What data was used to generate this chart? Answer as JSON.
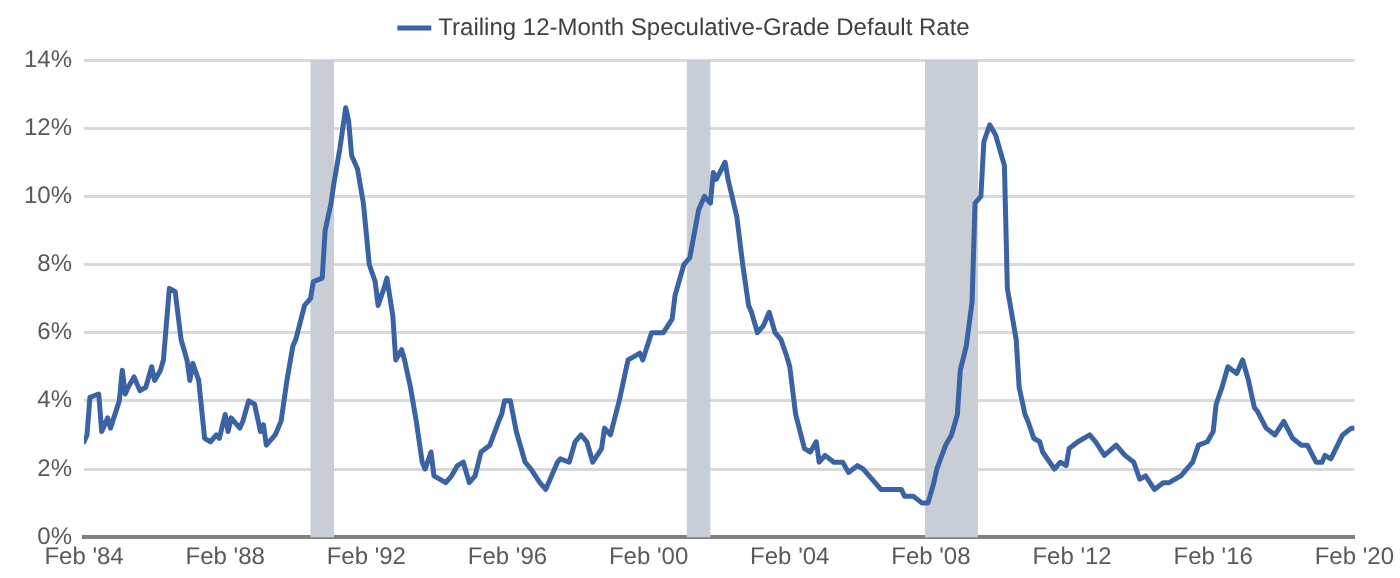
{
  "chart_data": {
    "type": "line",
    "legend": "top",
    "grid": "y",
    "marker": "none",
    "line_style": "solid",
    "xlim": [
      "1984-02",
      "2020-02"
    ],
    "xticks": [
      {
        "value": "1984-02",
        "label": "Feb '84"
      },
      {
        "value": "1988-02",
        "label": "Feb '88"
      },
      {
        "value": "1992-02",
        "label": "Feb '92"
      },
      {
        "value": "1996-02",
        "label": "Feb '96"
      },
      {
        "value": "2000-02",
        "label": "Feb '00"
      },
      {
        "value": "2004-02",
        "label": "Feb '04"
      },
      {
        "value": "2008-02",
        "label": "Feb '08"
      },
      {
        "value": "2012-02",
        "label": "Feb '12"
      },
      {
        "value": "2016-02",
        "label": "Feb '16"
      },
      {
        "value": "2020-02",
        "label": "Feb '20"
      }
    ],
    "ylim": [
      0,
      14
    ],
    "yticks": [
      {
        "value": 0,
        "label": "0%"
      },
      {
        "value": 2,
        "label": "2%"
      },
      {
        "value": 4,
        "label": "4%"
      },
      {
        "value": 6,
        "label": "6%"
      },
      {
        "value": 8,
        "label": "8%"
      },
      {
        "value": 10,
        "label": "10%"
      },
      {
        "value": 12,
        "label": "12%"
      },
      {
        "value": 14,
        "label": "14%"
      }
    ],
    "bands": [
      {
        "axis": "x",
        "from": "1990-07",
        "to": "1991-03",
        "color": "#c9ced6"
      },
      {
        "axis": "x",
        "from": "2001-03",
        "to": "2001-11",
        "color": "#c9ced6"
      },
      {
        "axis": "x",
        "from": "2007-12",
        "to": "2009-06",
        "color": "#c9ced6"
      }
    ],
    "x": [
      "1984-02",
      "1984-03",
      "1984-04",
      "1984-07",
      "1984-08",
      "1984-10",
      "1984-11",
      "1985-02",
      "1985-03",
      "1985-04",
      "1985-05",
      "1985-07",
      "1985-09",
      "1985-11",
      "1986-01",
      "1986-02",
      "1986-04",
      "1986-05",
      "1986-07",
      "1986-09",
      "1986-11",
      "1987-01",
      "1987-02",
      "1987-03",
      "1987-05",
      "1987-07",
      "1987-09",
      "1987-11",
      "1987-12",
      "1988-02",
      "1988-03",
      "1988-04",
      "1988-07",
      "1988-08",
      "1988-10",
      "1988-12",
      "1989-02",
      "1989-03",
      "1989-04",
      "1989-07",
      "1989-09",
      "1989-11",
      "1990-01",
      "1990-02",
      "1990-05",
      "1990-07",
      "1990-08",
      "1990-11",
      "1990-12",
      "1991-02",
      "1991-03",
      "1991-05",
      "1991-07",
      "1991-08",
      "1991-09",
      "1991-11",
      "1992-01",
      "1992-02",
      "1992-03",
      "1992-05",
      "1992-06",
      "1992-08",
      "1992-09",
      "1992-11",
      "1992-12",
      "1993-02",
      "1993-03",
      "1993-05",
      "1993-07",
      "1993-09",
      "1993-10",
      "1993-12",
      "1994-01",
      "1994-05",
      "1994-07",
      "1994-09",
      "1994-11",
      "1995-01",
      "1995-03",
      "1995-05",
      "1995-08",
      "1995-11",
      "1995-12",
      "1996-01",
      "1996-03",
      "1996-05",
      "1996-08",
      "1996-10",
      "1997-01",
      "1997-03",
      "1997-07",
      "1997-08",
      "1997-11",
      "1998-01",
      "1998-03",
      "1998-05",
      "1998-07",
      "1998-10",
      "1998-11",
      "1999-01",
      "1999-04",
      "1999-07",
      "1999-09",
      "1999-11",
      "1999-12",
      "2000-03",
      "2000-05",
      "2000-07",
      "2000-10",
      "2000-11",
      "2001-02",
      "2001-04",
      "2001-07",
      "2001-09",
      "2001-11",
      "2001-12",
      "2002-01",
      "2002-04",
      "2002-05",
      "2002-08",
      "2002-10",
      "2002-12",
      "2003-01",
      "2003-03",
      "2003-05",
      "2003-07",
      "2003-09",
      "2003-11",
      "2004-01",
      "2004-02",
      "2004-04",
      "2004-07",
      "2004-09",
      "2004-11",
      "2004-12",
      "2005-02",
      "2005-05",
      "2005-08",
      "2005-10",
      "2006-01",
      "2006-03",
      "2006-05",
      "2006-09",
      "2007-01",
      "2007-04",
      "2007-05",
      "2007-08",
      "2007-11",
      "2008-01",
      "2008-03",
      "2008-04",
      "2008-07",
      "2008-09",
      "2008-11",
      "2008-12",
      "2009-02",
      "2009-04",
      "2009-05",
      "2009-07",
      "2009-08",
      "2009-10",
      "2009-12",
      "2010-03",
      "2010-04",
      "2010-07",
      "2010-08",
      "2010-10",
      "2010-11",
      "2011-01",
      "2011-03",
      "2011-04",
      "2011-08",
      "2011-10",
      "2011-12",
      "2012-01",
      "2012-04",
      "2012-08",
      "2012-10",
      "2013-01",
      "2013-05",
      "2013-08",
      "2013-11",
      "2014-01",
      "2014-03",
      "2014-06",
      "2014-09",
      "2014-11",
      "2015-03",
      "2015-07",
      "2015-09",
      "2015-12",
      "2016-02",
      "2016-03",
      "2016-05",
      "2016-07",
      "2016-10",
      "2016-12",
      "2017-02",
      "2017-04",
      "2017-05",
      "2017-08",
      "2017-11",
      "2018-02",
      "2018-05",
      "2018-08",
      "2018-10",
      "2019-01",
      "2019-03",
      "2019-04",
      "2019-06",
      "2019-10",
      "2020-01",
      "2020-02"
    ],
    "series": [
      {
        "name": "Trailing 12-Month Speculative-Grade Default Rate",
        "color": "#3a63a5",
        "values": [
          2.8,
          3.0,
          4.1,
          4.2,
          3.1,
          3.5,
          3.2,
          4.0,
          4.9,
          4.2,
          4.4,
          4.7,
          4.3,
          4.4,
          5.0,
          4.6,
          4.9,
          5.2,
          7.3,
          7.2,
          5.8,
          5.2,
          4.6,
          5.1,
          4.6,
          2.9,
          2.8,
          3.0,
          2.9,
          3.6,
          3.1,
          3.5,
          3.2,
          3.4,
          4.0,
          3.9,
          3.1,
          3.3,
          2.7,
          3.0,
          3.4,
          4.6,
          5.6,
          5.8,
          6.8,
          7.0,
          7.5,
          7.6,
          9.0,
          9.8,
          10.4,
          11.4,
          12.6,
          12.2,
          11.2,
          10.8,
          9.8,
          8.9,
          8.0,
          7.5,
          6.8,
          7.3,
          7.6,
          6.5,
          5.2,
          5.5,
          5.2,
          4.4,
          3.4,
          2.2,
          2.0,
          2.5,
          1.8,
          1.6,
          1.8,
          2.1,
          2.2,
          1.6,
          1.8,
          2.5,
          2.7,
          3.4,
          3.6,
          4.0,
          4.0,
          3.1,
          2.2,
          2.0,
          1.6,
          1.4,
          2.2,
          2.3,
          2.2,
          2.8,
          3.0,
          2.8,
          2.2,
          2.6,
          3.2,
          3.0,
          4.0,
          5.2,
          5.3,
          5.4,
          5.2,
          6.0,
          6.0,
          6.0,
          6.4,
          7.1,
          8.0,
          8.2,
          9.6,
          10.0,
          9.8,
          10.7,
          10.5,
          11.0,
          10.5,
          9.4,
          8.0,
          6.8,
          6.6,
          6.0,
          6.2,
          6.6,
          6.0,
          5.8,
          5.3,
          5.0,
          3.6,
          2.6,
          2.5,
          2.8,
          2.2,
          2.4,
          2.2,
          2.2,
          1.9,
          2.1,
          2.0,
          1.8,
          1.4,
          1.4,
          1.4,
          1.2,
          1.2,
          1.0,
          1.0,
          1.6,
          2.0,
          2.7,
          3.0,
          3.6,
          4.9,
          5.6,
          6.9,
          9.8,
          10.0,
          11.6,
          12.1,
          11.8,
          10.9,
          7.3,
          5.8,
          4.4,
          3.6,
          3.4,
          2.9,
          2.8,
          2.5,
          2.0,
          2.2,
          2.1,
          2.6,
          2.8,
          3.0,
          2.8,
          2.4,
          2.7,
          2.4,
          2.2,
          1.7,
          1.8,
          1.4,
          1.6,
          1.6,
          1.8,
          2.2,
          2.7,
          2.8,
          3.1,
          3.9,
          4.4,
          5.0,
          4.8,
          5.2,
          4.6,
          3.8,
          3.7,
          3.2,
          3.0,
          3.4,
          2.9,
          2.7,
          2.7,
          2.2,
          2.2,
          2.4,
          2.3,
          3.0,
          3.2,
          3.2
        ]
      }
    ]
  }
}
